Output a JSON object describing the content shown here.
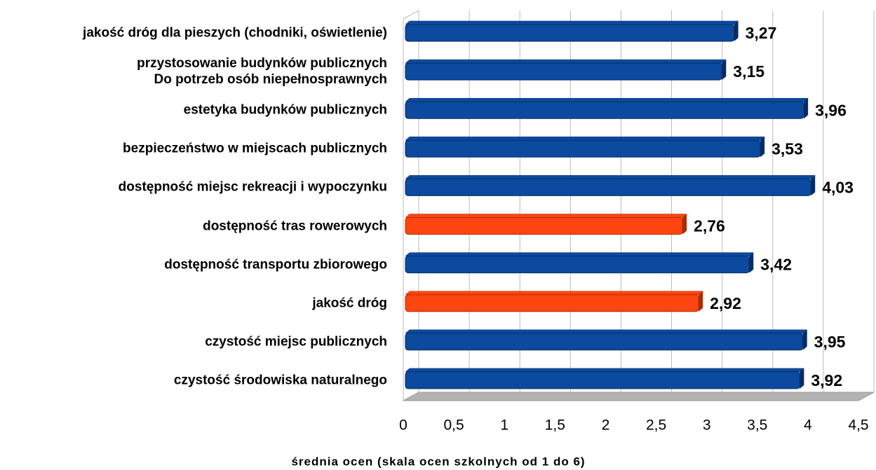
{
  "chart_data": {
    "type": "bar",
    "orientation": "horizontal",
    "x_label": "średnia ocen (skala ocen szkolnych od 1 do 6)",
    "categories": [
      "jakość dróg dla pieszych (chodniki, oświetlenie)",
      "przystosowanie budynków publicznych\nDo potrzeb osób niepełnosprawnych",
      "estetyka budynków publicznych",
      "bezpieczeństwo w miejscach publicznych",
      "dostępność miejsc rekreacji i wypoczynku",
      "dostępność tras rowerowych",
      "dostępność transportu zbiorowego",
      "jakość dróg",
      "czystość miejsc publicznych",
      "czystość środowiska naturalnego"
    ],
    "values": [
      3.27,
      3.15,
      3.96,
      3.53,
      4.03,
      2.76,
      3.42,
      2.92,
      3.95,
      3.92
    ],
    "value_labels": [
      "3,27",
      "3,15",
      "3,96",
      "3,53",
      "4,03",
      "2,76",
      "3,42",
      "2,92",
      "3,95",
      "3,92"
    ],
    "colors": [
      "#0b4a9e",
      "#0b4a9e",
      "#0b4a9e",
      "#0b4a9e",
      "#0b4a9e",
      "#ff4510",
      "#0b4a9e",
      "#ff4510",
      "#0b4a9e",
      "#0b4a9e"
    ],
    "xlim": [
      0,
      4.5
    ],
    "xticks": [
      0,
      {
        "value": 0.5,
        "label": "0,5"
      },
      1,
      {
        "value": 1.5,
        "label": "1,5"
      },
      2,
      {
        "value": 2.5,
        "label": "2,5"
      },
      3,
      {
        "value": 3.5,
        "label": "3,5"
      },
      4,
      {
        "value": 4.5,
        "label": "4,5"
      }
    ],
    "grid": true
  }
}
